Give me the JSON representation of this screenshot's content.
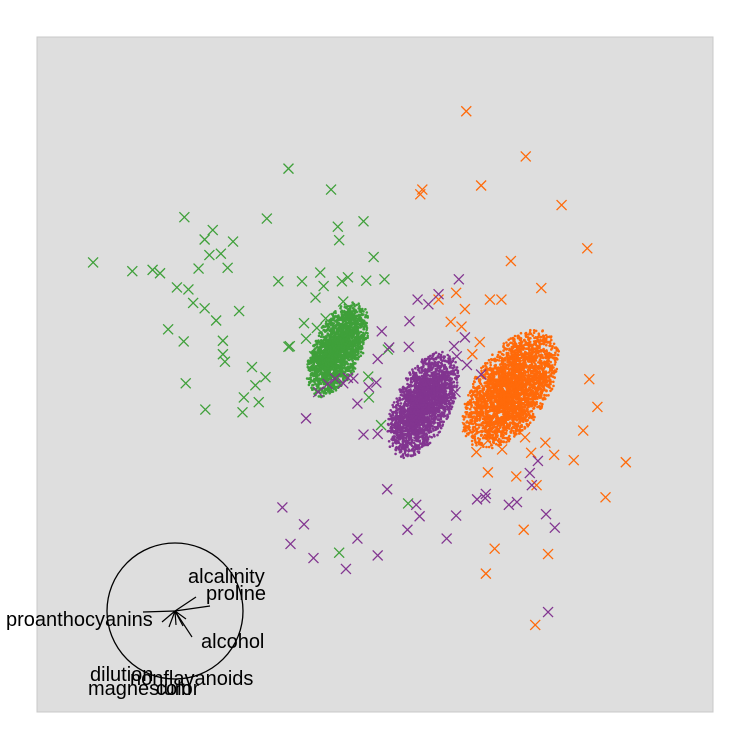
{
  "chart_data": {
    "type": "scatter",
    "title": "",
    "xlabel": "",
    "ylabel": "",
    "grid": false,
    "legend": "none",
    "colors": {
      "green": "#3fa03a",
      "orange": "#ff6a0a",
      "purple": "#823590",
      "panel": "#dedede"
    },
    "clusters": [
      {
        "color_key": "green",
        "center": [
          0.445,
          0.537
        ],
        "spread": [
          0.026,
          0.034
        ],
        "n": 2200
      },
      {
        "color_key": "purple",
        "center": [
          0.571,
          0.455
        ],
        "spread": [
          0.03,
          0.038
        ],
        "n": 2600
      },
      {
        "color_key": "orange",
        "center": [
          0.701,
          0.478
        ],
        "spread": [
          0.041,
          0.042
        ],
        "n": 3200
      }
    ],
    "x_markers": {
      "green": [
        [
          0.083,
          0.666
        ],
        [
          0.372,
          0.805
        ],
        [
          0.34,
          0.731
        ],
        [
          0.435,
          0.774
        ],
        [
          0.26,
          0.714
        ],
        [
          0.141,
          0.653
        ],
        [
          0.171,
          0.655
        ],
        [
          0.207,
          0.629
        ],
        [
          0.182,
          0.65
        ],
        [
          0.224,
          0.626
        ],
        [
          0.239,
          0.657
        ],
        [
          0.255,
          0.677
        ],
        [
          0.272,
          0.679
        ],
        [
          0.282,
          0.658
        ],
        [
          0.248,
          0.598
        ],
        [
          0.194,
          0.567
        ],
        [
          0.299,
          0.594
        ],
        [
          0.265,
          0.58
        ],
        [
          0.231,
          0.606
        ],
        [
          0.217,
          0.549
        ],
        [
          0.275,
          0.55
        ],
        [
          0.275,
          0.53
        ],
        [
          0.318,
          0.511
        ],
        [
          0.323,
          0.484
        ],
        [
          0.306,
          0.466
        ],
        [
          0.278,
          0.519
        ],
        [
          0.338,
          0.496
        ],
        [
          0.357,
          0.638
        ],
        [
          0.392,
          0.638
        ],
        [
          0.412,
          0.614
        ],
        [
          0.424,
          0.631
        ],
        [
          0.419,
          0.651
        ],
        [
          0.451,
          0.638
        ],
        [
          0.453,
          0.608
        ],
        [
          0.427,
          0.583
        ],
        [
          0.414,
          0.569
        ],
        [
          0.398,
          0.553
        ],
        [
          0.374,
          0.542
        ],
        [
          0.395,
          0.576
        ],
        [
          0.41,
          0.527
        ],
        [
          0.445,
          0.719
        ],
        [
          0.447,
          0.699
        ],
        [
          0.483,
          0.727
        ],
        [
          0.498,
          0.674
        ],
        [
          0.514,
          0.641
        ],
        [
          0.487,
          0.639
        ],
        [
          0.46,
          0.644
        ],
        [
          0.49,
          0.497
        ],
        [
          0.519,
          0.537
        ],
        [
          0.491,
          0.466
        ],
        [
          0.509,
          0.425
        ],
        [
          0.249,
          0.448
        ],
        [
          0.22,
          0.487
        ],
        [
          0.328,
          0.459
        ],
        [
          0.304,
          0.444
        ],
        [
          0.29,
          0.697
        ],
        [
          0.248,
          0.7
        ],
        [
          0.218,
          0.733
        ],
        [
          0.549,
          0.309
        ],
        [
          0.447,
          0.236
        ],
        [
          0.372,
          0.541
        ]
      ],
      "orange": [
        [
          0.635,
          0.89
        ],
        [
          0.57,
          0.774
        ],
        [
          0.723,
          0.823
        ],
        [
          0.657,
          0.78
        ],
        [
          0.776,
          0.751
        ],
        [
          0.814,
          0.687
        ],
        [
          0.701,
          0.668
        ],
        [
          0.67,
          0.611
        ],
        [
          0.746,
          0.628
        ],
        [
          0.62,
          0.621
        ],
        [
          0.633,
          0.597
        ],
        [
          0.628,
          0.571
        ],
        [
          0.644,
          0.53
        ],
        [
          0.687,
          0.611
        ],
        [
          0.655,
          0.548
        ],
        [
          0.612,
          0.578
        ],
        [
          0.817,
          0.493
        ],
        [
          0.829,
          0.452
        ],
        [
          0.808,
          0.417
        ],
        [
          0.871,
          0.37
        ],
        [
          0.752,
          0.399
        ],
        [
          0.731,
          0.384
        ],
        [
          0.688,
          0.389
        ],
        [
          0.667,
          0.402
        ],
        [
          0.722,
          0.407
        ],
        [
          0.636,
          0.422
        ],
        [
          0.667,
          0.355
        ],
        [
          0.709,
          0.349
        ],
        [
          0.739,
          0.336
        ],
        [
          0.765,
          0.381
        ],
        [
          0.794,
          0.373
        ],
        [
          0.841,
          0.318
        ],
        [
          0.72,
          0.27
        ],
        [
          0.756,
          0.234
        ],
        [
          0.677,
          0.242
        ],
        [
          0.737,
          0.129
        ],
        [
          0.664,
          0.205
        ],
        [
          0.567,
          0.767
        ],
        [
          0.594,
          0.611
        ],
        [
          0.65,
          0.385
        ],
        [
          0.686,
          0.429
        ]
      ],
      "purple": [
        [
          0.624,
          0.641
        ],
        [
          0.594,
          0.619
        ],
        [
          0.563,
          0.611
        ],
        [
          0.579,
          0.604
        ],
        [
          0.551,
          0.579
        ],
        [
          0.55,
          0.541
        ],
        [
          0.51,
          0.564
        ],
        [
          0.521,
          0.54
        ],
        [
          0.504,
          0.523
        ],
        [
          0.502,
          0.488
        ],
        [
          0.491,
          0.481
        ],
        [
          0.46,
          0.495
        ],
        [
          0.453,
          0.487
        ],
        [
          0.441,
          0.494
        ],
        [
          0.43,
          0.486
        ],
        [
          0.416,
          0.474
        ],
        [
          0.398,
          0.435
        ],
        [
          0.468,
          0.494
        ],
        [
          0.474,
          0.457
        ],
        [
          0.483,
          0.411
        ],
        [
          0.504,
          0.412
        ],
        [
          0.543,
          0.392
        ],
        [
          0.59,
          0.443
        ],
        [
          0.619,
          0.474
        ],
        [
          0.621,
          0.527
        ],
        [
          0.633,
          0.555
        ],
        [
          0.657,
          0.5
        ],
        [
          0.617,
          0.542
        ],
        [
          0.636,
          0.514
        ],
        [
          0.363,
          0.303
        ],
        [
          0.395,
          0.278
        ],
        [
          0.409,
          0.228
        ],
        [
          0.474,
          0.257
        ],
        [
          0.504,
          0.232
        ],
        [
          0.561,
          0.307
        ],
        [
          0.566,
          0.29
        ],
        [
          0.62,
          0.291
        ],
        [
          0.651,
          0.315
        ],
        [
          0.664,
          0.323
        ],
        [
          0.698,
          0.307
        ],
        [
          0.71,
          0.311
        ],
        [
          0.753,
          0.293
        ],
        [
          0.766,
          0.273
        ],
        [
          0.741,
          0.372
        ],
        [
          0.729,
          0.354
        ],
        [
          0.663,
          0.317
        ],
        [
          0.606,
          0.257
        ],
        [
          0.548,
          0.27
        ],
        [
          0.518,
          0.33
        ],
        [
          0.375,
          0.249
        ],
        [
          0.457,
          0.212
        ],
        [
          0.756,
          0.148
        ],
        [
          0.732,
          0.336
        ]
      ]
    },
    "biplot": {
      "circle_radius": 0.101,
      "labels": [
        "alcalinity",
        "proline",
        "proanthocyanins",
        "alcohol",
        "dilution",
        "nonflavanoids",
        "magnesium",
        "color"
      ]
    }
  }
}
